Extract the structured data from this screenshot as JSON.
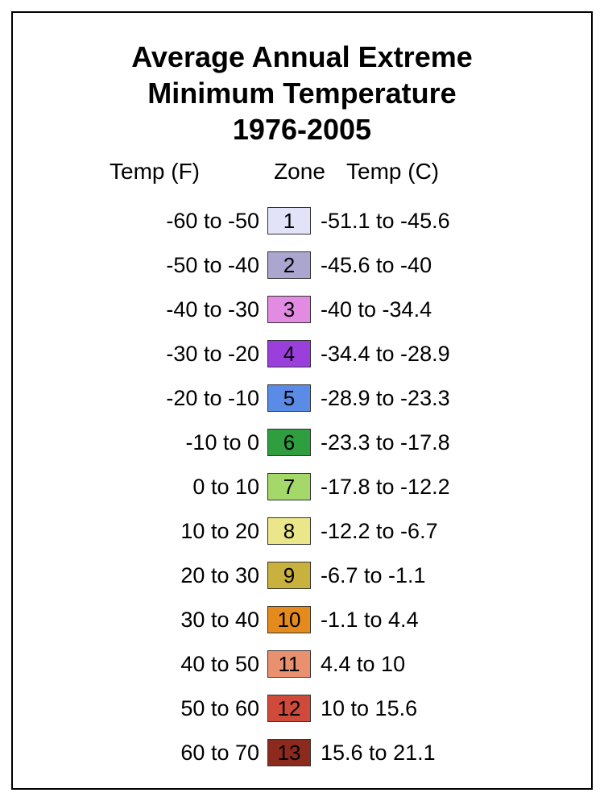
{
  "title_line1": "Average Annual Extreme",
  "title_line2": "Minimum Temperature",
  "title_line3": "1976-2005",
  "headers": {
    "temp_f": "Temp (F)",
    "zone": "Zone",
    "temp_c": "Temp (C)"
  },
  "border_color": "#000000",
  "background_color": "#ffffff",
  "title_fontsize": 36,
  "body_fontsize": 27,
  "zone_box_width": 54,
  "zone_box_height": 34,
  "zones": [
    {
      "temp_f": "-60 to -50",
      "zone": "1",
      "temp_c": "-51.1 to -45.6",
      "color": "#e2e2f8"
    },
    {
      "temp_f": "-50 to -40",
      "zone": "2",
      "temp_c": "-45.6 to -40",
      "color": "#aaa6cf"
    },
    {
      "temp_f": "-40 to -30",
      "zone": "3",
      "temp_c": "-40 to -34.4",
      "color": "#e18ce2"
    },
    {
      "temp_f": "-30 to -20",
      "zone": "4",
      "temp_c": "-34.4 to -28.9",
      "color": "#9a3edc"
    },
    {
      "temp_f": "-20 to -10",
      "zone": "5",
      "temp_c": "-28.9 to -23.3",
      "color": "#5a8be6"
    },
    {
      "temp_f": "-10 to 0",
      "zone": "6",
      "temp_c": "-23.3 to -17.8",
      "color": "#2f9e3f"
    },
    {
      "temp_f": "0 to 10",
      "zone": "7",
      "temp_c": "-17.8 to -12.2",
      "color": "#a5d86a"
    },
    {
      "temp_f": "10 to 20",
      "zone": "8",
      "temp_c": "-12.2 to -6.7",
      "color": "#ece68a"
    },
    {
      "temp_f": "20 to 30",
      "zone": "9",
      "temp_c": "-6.7 to -1.1",
      "color": "#c8b13c"
    },
    {
      "temp_f": "30 to 40",
      "zone": "10",
      "temp_c": "-1.1 to 4.4",
      "color": "#e58b1d"
    },
    {
      "temp_f": "40 to 50",
      "zone": "11",
      "temp_c": "4.4 to 10",
      "color": "#e9906f"
    },
    {
      "temp_f": "50 to 60",
      "zone": "12",
      "temp_c": "10 to 15.6",
      "color": "#cf4a3a"
    },
    {
      "temp_f": "60 to 70",
      "zone": "13",
      "temp_c": "15.6 to 21.1",
      "color": "#8c2a1e"
    }
  ]
}
